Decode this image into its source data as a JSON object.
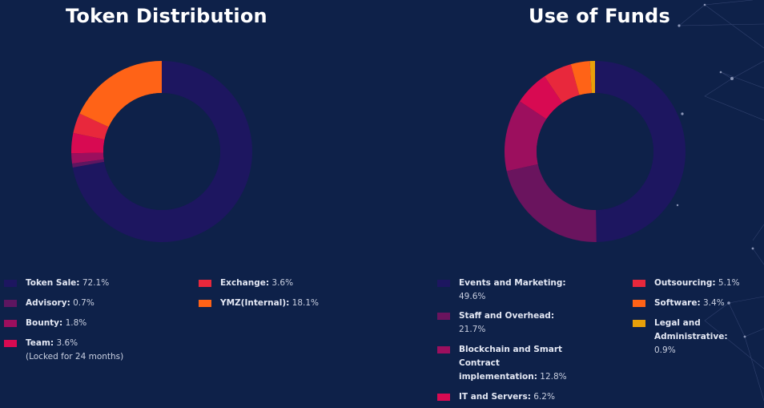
{
  "charts": [
    {
      "title": "Token Distribution",
      "chart_data": {
        "type": "pie",
        "variant": "donut",
        "series": [
          {
            "label": "Token Sale",
            "value": 72.1,
            "color": "#1d1660"
          },
          {
            "label": "Advisory",
            "value": 0.7,
            "color": "#5e1660"
          },
          {
            "label": "Bounty",
            "value": 1.8,
            "color": "#9c0f5e"
          },
          {
            "label": "Team",
            "value": 3.6,
            "color": "#d80a52",
            "note": "(Locked for 24 months)"
          },
          {
            "label": "Exchange",
            "value": 3.6,
            "color": "#e8283c"
          },
          {
            "label": "YMZ(Internal)",
            "value": 18.1,
            "color": "#ff6317"
          }
        ]
      }
    },
    {
      "title": "Use of Funds",
      "chart_data": {
        "type": "pie",
        "variant": "donut",
        "series": [
          {
            "label": "Events and Marketing",
            "value": 49.6,
            "color": "#1d1660"
          },
          {
            "label": "Staff and Overhead",
            "value": 21.7,
            "color": "#6a145e"
          },
          {
            "label": "Blockchain and Smart Contract implementation",
            "value": 12.8,
            "color": "#9c0f5e"
          },
          {
            "label": "IT and Servers",
            "value": 6.2,
            "color": "#d80a52"
          },
          {
            "label": "Outsourcing",
            "value": 5.1,
            "color": "#e8283c"
          },
          {
            "label": "Software",
            "value": 3.4,
            "color": "#ff6317"
          },
          {
            "label": "Legal and Administrative",
            "value": 0.9,
            "color": "#e8a00a"
          }
        ]
      }
    }
  ]
}
